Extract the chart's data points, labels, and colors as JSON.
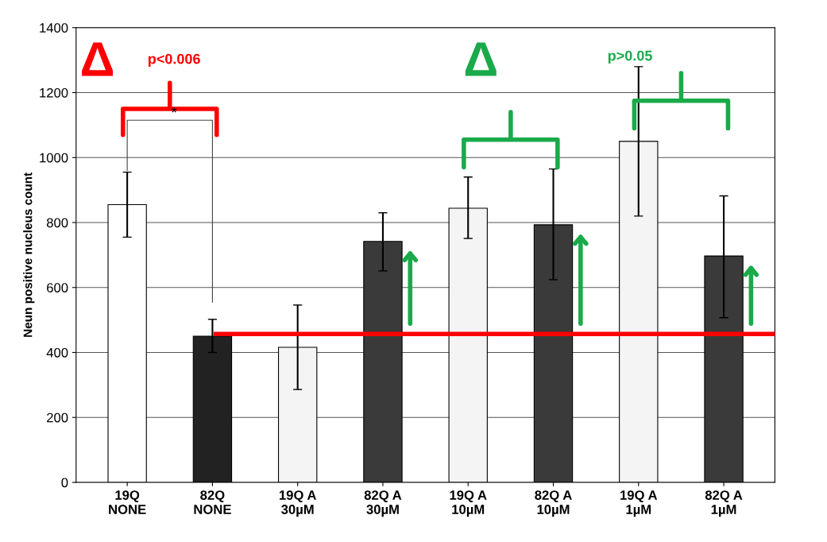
{
  "chart_data": {
    "type": "bar",
    "ylabel": "Neun positive nucleus count",
    "categories": [
      "19Q\nNONE",
      "82Q\nNONE",
      "19Q A\n30µM",
      "82Q A\n30µM",
      "19Q A\n10µM",
      "82Q A\n10µM",
      "19Q A\n1µM",
      "82Q A\n1µM"
    ],
    "values": [
      855,
      450,
      416,
      742,
      844,
      793,
      1050,
      697
    ],
    "errors": [
      [
        755,
        955
      ],
      [
        400,
        502
      ],
      [
        286,
        546
      ],
      [
        651,
        830
      ],
      [
        751,
        940
      ],
      [
        624,
        965
      ],
      [
        820,
        1280
      ],
      [
        507,
        882
      ]
    ],
    "colors": [
      "#ffffff",
      "#222222",
      "#f4f4f4",
      "#3a3a3a",
      "#f4f4f4",
      "#3a3a3a",
      "#f4f4f4",
      "#3a3a3a"
    ],
    "ylim": [
      0,
      1400
    ],
    "yticks": [
      0,
      200,
      400,
      600,
      800,
      1000,
      1200,
      1400
    ],
    "grid": "y",
    "ref_lines": [
      {
        "axis": "y",
        "value": 457,
        "color": "#ff0000"
      }
    ],
    "annotations": [
      "Δ",
      "p<0.006",
      "*",
      "Δ",
      "p>0.05"
    ]
  }
}
